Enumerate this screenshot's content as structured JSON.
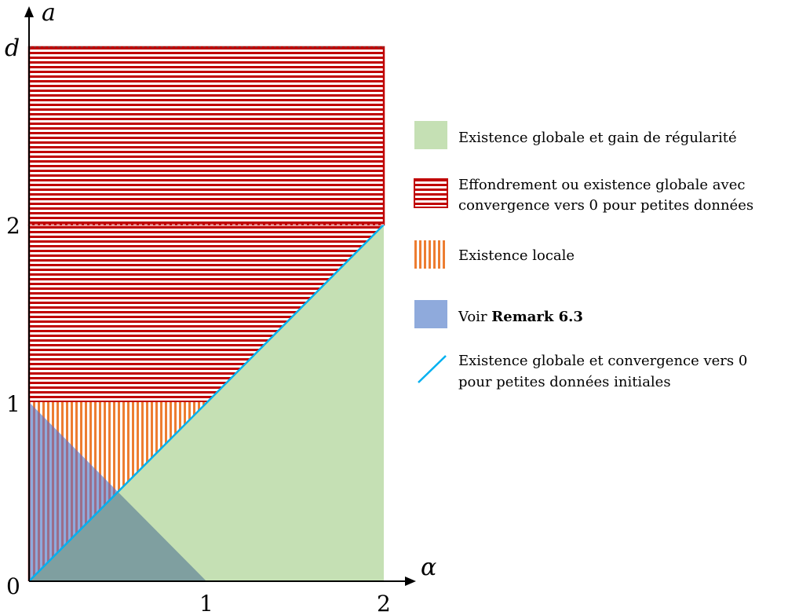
{
  "axes": {
    "y_label": "a",
    "x_label": "α",
    "origin_label": "0",
    "y_ticks": [
      "1",
      "2",
      "d"
    ],
    "x_ticks": [
      "1",
      "2"
    ]
  },
  "legend": {
    "items": [
      {
        "key": "green",
        "lines": [
          "Existence globale et gain de régularité"
        ]
      },
      {
        "key": "red",
        "lines": [
          "Effondrement ou existence globale avec",
          "convergence vers 0 pour petites données"
        ]
      },
      {
        "key": "orange",
        "lines": [
          "Existence locale"
        ]
      },
      {
        "key": "blue",
        "prefix": "Voir ",
        "bold": "Remark 6.3"
      },
      {
        "key": "line",
        "lines": [
          "Existence globale et convergence vers 0",
          "pour petites données initiales"
        ]
      }
    ]
  },
  "colors": {
    "green": "#c5e0b4",
    "red": "#c00000",
    "orange": "#ed7d31",
    "blue": "#8faadc",
    "overlap": "#7f9fa0",
    "line": "#00b0f0"
  }
}
